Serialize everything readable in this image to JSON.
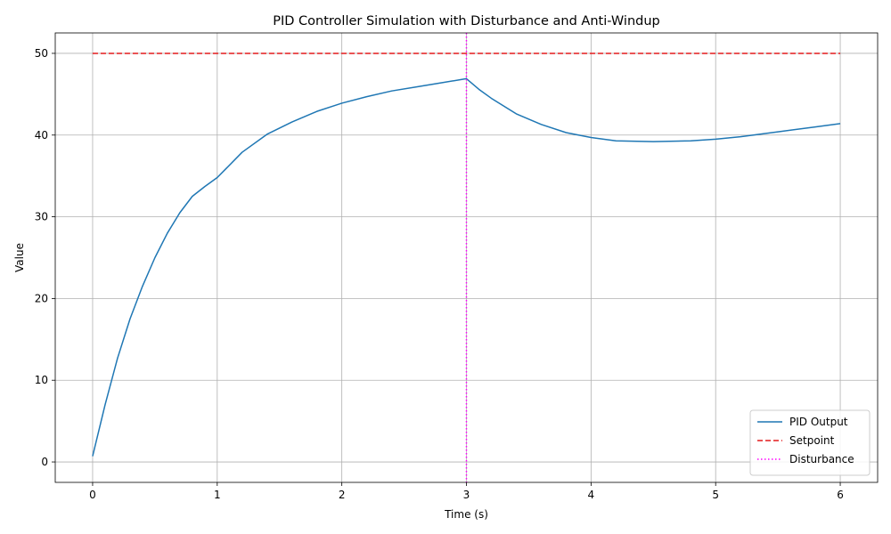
{
  "chart_data": {
    "type": "line",
    "title": "PID Controller Simulation with Disturbance and Anti-Windup",
    "xlabel": "Time (s)",
    "ylabel": "Value",
    "xlim": [
      -0.3,
      6.3
    ],
    "ylim": [
      -2.5,
      52.5
    ],
    "xticks": [
      0,
      1,
      2,
      3,
      4,
      5,
      6
    ],
    "yticks": [
      0,
      10,
      20,
      30,
      40,
      50
    ],
    "grid": true,
    "legend": {
      "placement": "lower-right"
    },
    "series": [
      {
        "name": "PID Output",
        "style": "solid",
        "color": "#1f77b4",
        "x": [
          0,
          0.1,
          0.2,
          0.3,
          0.4,
          0.5,
          0.6,
          0.7,
          0.8,
          0.9,
          1.0,
          1.2,
          1.4,
          1.6,
          1.8,
          2.0,
          2.2,
          2.4,
          2.6,
          2.8,
          3.0,
          3.1,
          3.2,
          3.4,
          3.6,
          3.8,
          4.0,
          4.2,
          4.5,
          4.8,
          5.0,
          5.2,
          5.5,
          5.8,
          6.0
        ],
        "y": [
          0.7,
          7.0,
          12.7,
          17.5,
          21.5,
          25.0,
          28.0,
          30.5,
          32.5,
          33.7,
          34.8,
          37.9,
          40.1,
          41.6,
          42.9,
          43.9,
          44.7,
          45.4,
          45.9,
          46.4,
          46.9,
          45.6,
          44.5,
          42.6,
          41.3,
          40.3,
          39.7,
          39.3,
          39.2,
          39.3,
          39.5,
          39.8,
          40.4,
          41.0,
          41.4
        ]
      },
      {
        "name": "Setpoint",
        "style": "dashed",
        "color": "#e41a1c",
        "x": [
          0,
          6
        ],
        "y": [
          50,
          50
        ]
      }
    ],
    "vlines": [
      {
        "name": "Disturbance",
        "x": 3,
        "style": "dotted",
        "color": "#ff00ff"
      }
    ]
  }
}
